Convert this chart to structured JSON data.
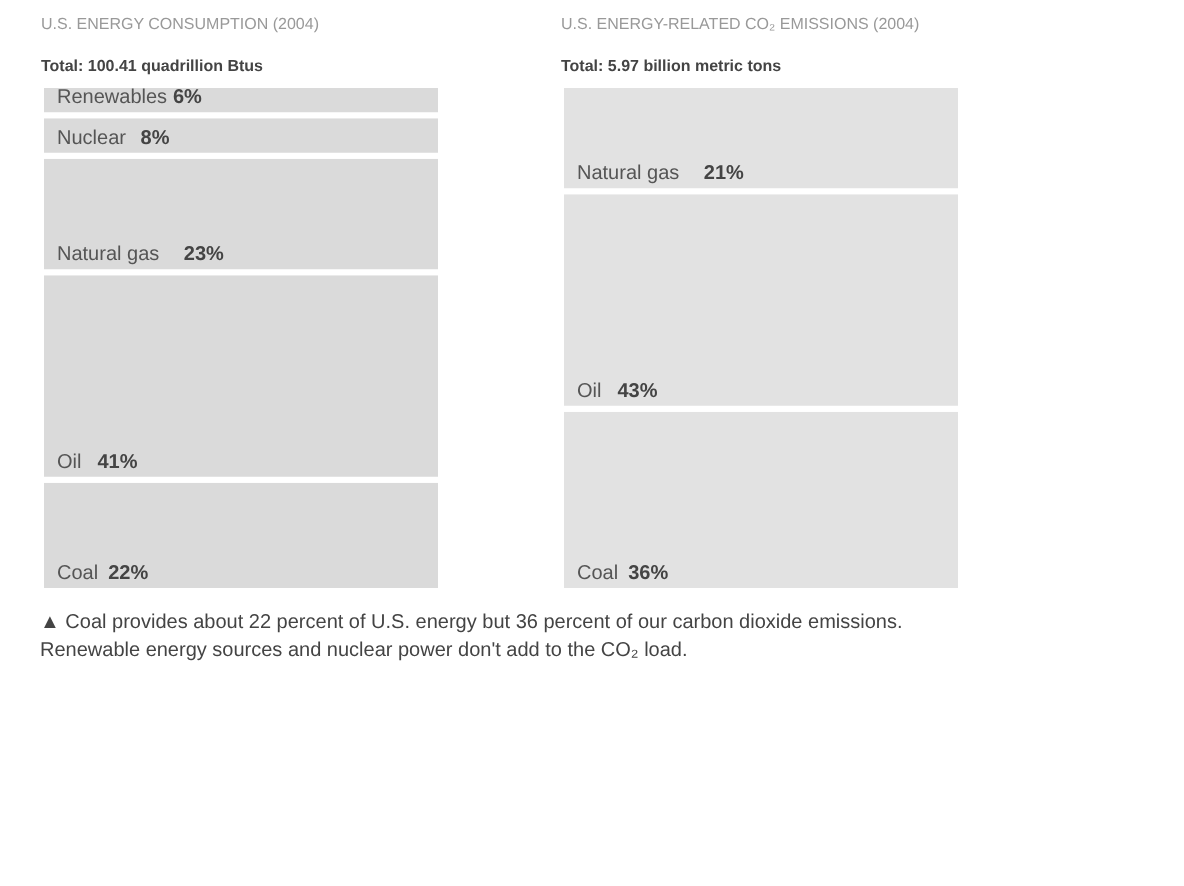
{
  "chart_data": [
    {
      "type": "bar",
      "title": "U.S. ENERGY CONSUMPTION (2004)",
      "subtitle": "Total: 100.41 quadrillion Btus",
      "categories": [
        null
      ],
      "stacked": true,
      "data_labels": true,
      "tick_labels": false,
      "series": [
        {
          "name": "Coal",
          "color": "#dadada",
          "values": [
            22
          ],
          "value_labels": [
            "22%"
          ]
        },
        {
          "name": "Oil",
          "color": "#dadada",
          "values": [
            41
          ],
          "value_labels": [
            "41%"
          ]
        },
        {
          "name": "Natural gas",
          "color": "#dadada",
          "values": [
            23
          ],
          "value_labels": [
            "23%"
          ]
        },
        {
          "name": "Nuclear",
          "color": "#dadada",
          "values": [
            8
          ],
          "value_labels": [
            "8%"
          ]
        },
        {
          "name": "Renewables",
          "color": "#dadada",
          "values": [
            6
          ],
          "value_labels": [
            "6%"
          ]
        }
      ],
      "annotations": [
        "▲ Coal provides about 22 percent of U.S. energy but 36 percent of our carbon dioxide emissions. Renewable energy sources and nuclear power don't add to the CO₂ load."
      ]
    },
    {
      "type": "bar",
      "title": "U.S. ENERGY-RELATED CO₂ EMISSIONS (2004)",
      "subtitle": "Total: 5.97 billion metric tons",
      "categories": [
        null
      ],
      "stacked": true,
      "data_labels": true,
      "tick_labels": false,
      "series": [
        {
          "name": "Coal",
          "color": "#e2e2e2",
          "values": [
            36
          ],
          "value_labels": [
            "36%"
          ]
        },
        {
          "name": "Oil",
          "color": "#e2e2e2",
          "values": [
            43
          ],
          "value_labels": [
            "43%"
          ]
        },
        {
          "name": "Natural gas",
          "color": "#e2e2e2",
          "values": [
            21
          ],
          "value_labels": [
            "21%"
          ]
        }
      ]
    }
  ]
}
